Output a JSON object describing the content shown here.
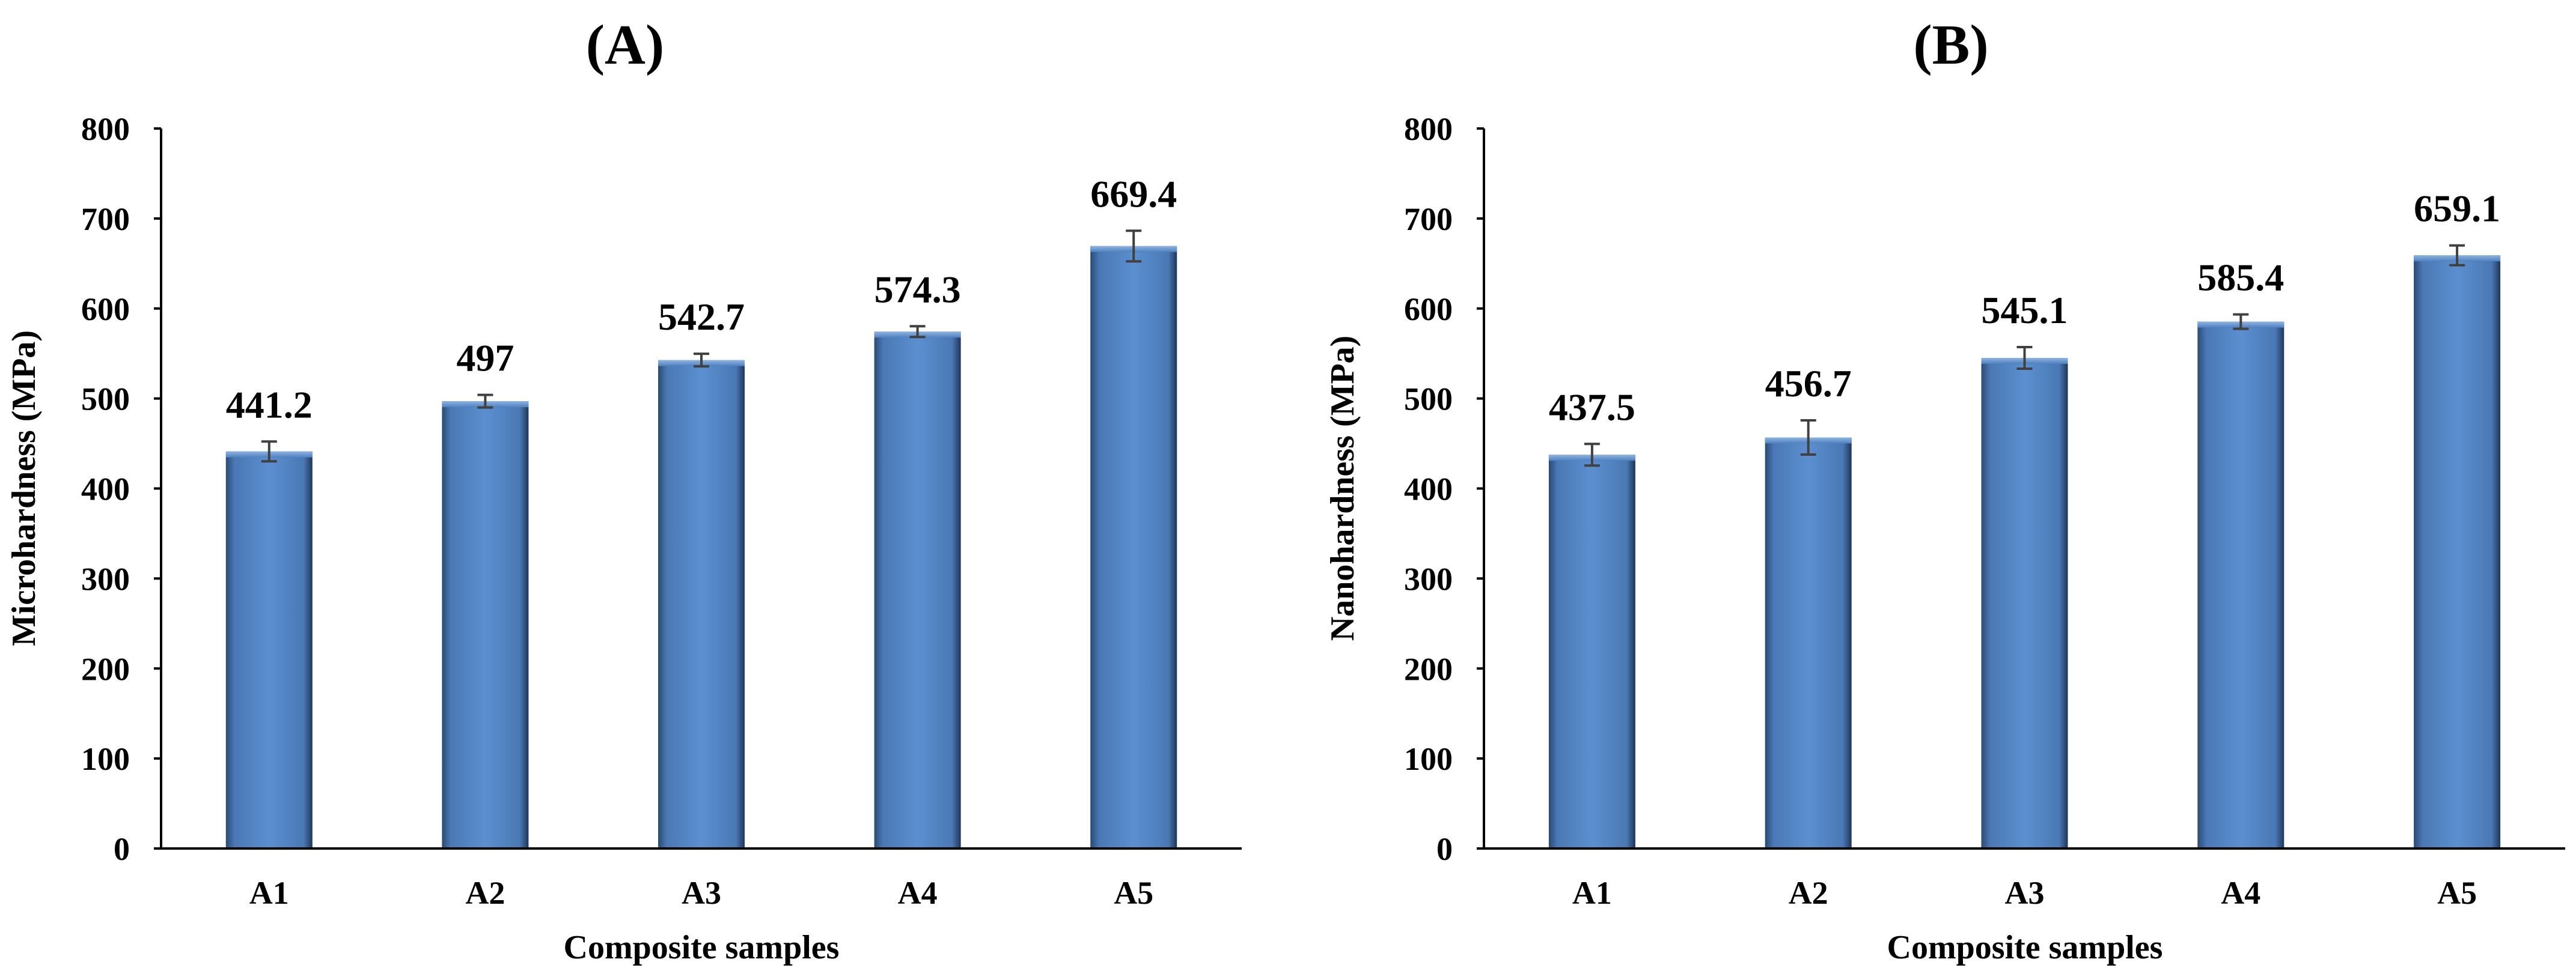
{
  "chart_data": [
    {
      "type": "bar",
      "panel": "(A)",
      "categories": [
        "A1",
        "A2",
        "A3",
        "A4",
        "A5"
      ],
      "values": [
        441.2,
        497,
        542.7,
        574.3,
        669.4
      ],
      "value_labels": [
        "441.2",
        "497",
        "542.7",
        "574.3",
        "669.4"
      ],
      "error": [
        11,
        7,
        7,
        6,
        17
      ],
      "xlabel": "Composite samples",
      "ylabel": "Microhardness (MPa)",
      "ylim": [
        0,
        800
      ],
      "yticks": [
        "0",
        "100",
        "200",
        "300",
        "400",
        "500",
        "600",
        "700",
        "800"
      ],
      "grid": false,
      "bar_color": "#4f81bd"
    },
    {
      "type": "bar",
      "panel": "(B)",
      "categories": [
        "A1",
        "A2",
        "A3",
        "A4",
        "A5"
      ],
      "values": [
        437.5,
        456.7,
        545.1,
        585.4,
        659.1
      ],
      "value_labels": [
        "437.5",
        "456.7",
        "545.1",
        "585.4",
        "659.1"
      ],
      "error": [
        12,
        19,
        12,
        8,
        11
      ],
      "xlabel": "Composite samples",
      "ylabel": "Nanohardness (MPa)",
      "ylim": [
        0,
        800
      ],
      "yticks": [
        "0",
        "100",
        "200",
        "300",
        "400",
        "500",
        "600",
        "700",
        "800"
      ],
      "grid": false,
      "bar_color": "#4f81bd"
    }
  ]
}
